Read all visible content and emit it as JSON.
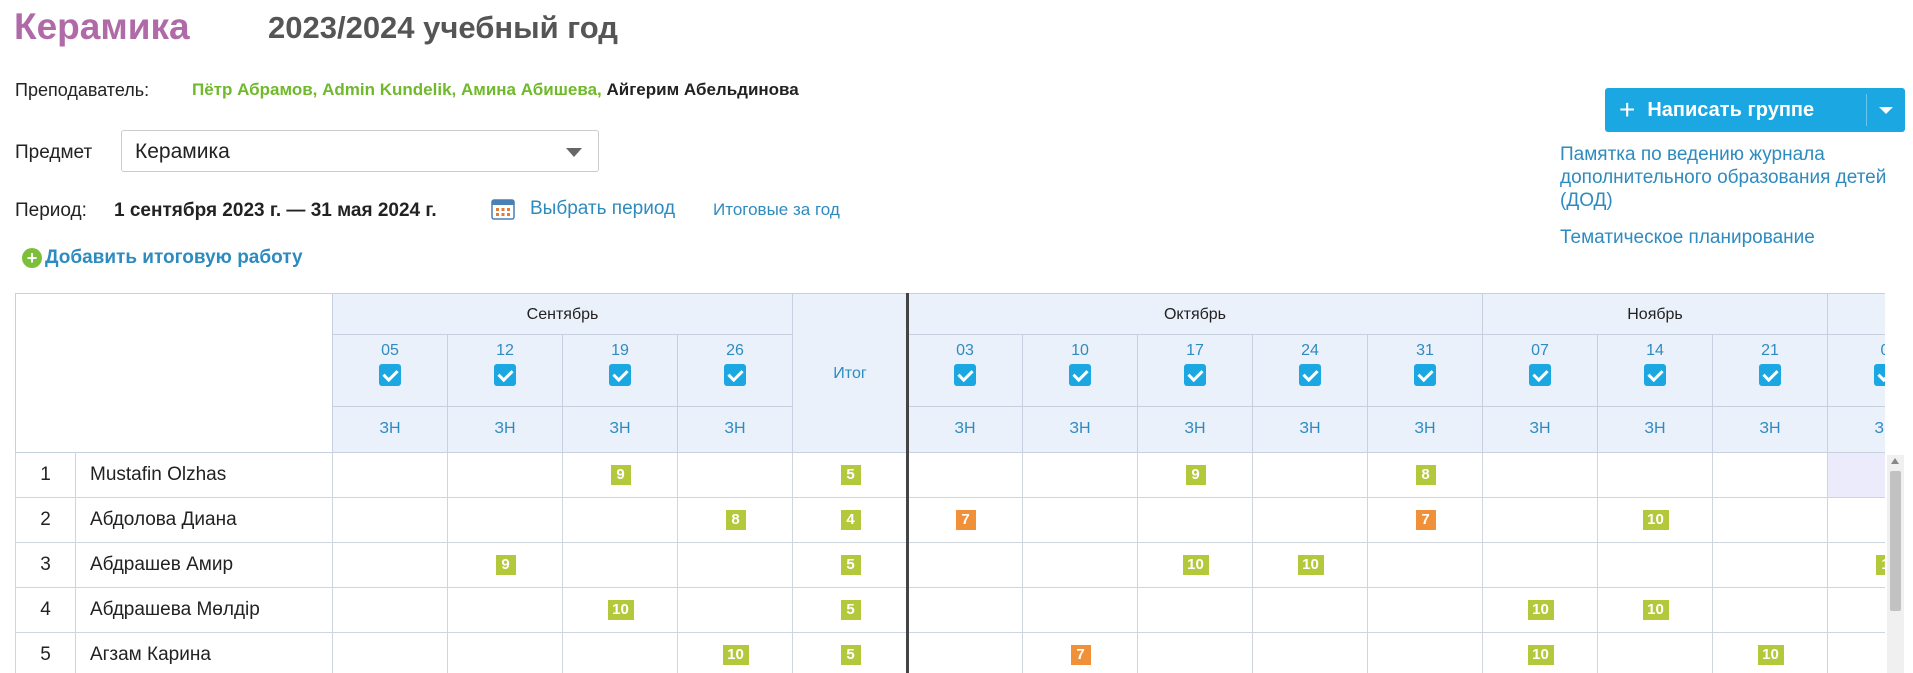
{
  "header": {
    "title": "Керамика",
    "year": "2023/2024 учебный год"
  },
  "teacher": {
    "label": "Преподаватель:",
    "names_green": "Пётр Абрамов, Admin Kundelik, Амина Абишева,",
    "names_dark": "Айгерим Абельдинова"
  },
  "subject": {
    "label": "Предмет",
    "value": "Керамика"
  },
  "period": {
    "label": "Период:",
    "value": "1 сентября 2023 г. — 31 мая 2024 г.",
    "choose_link": "Выбрать период",
    "year_totals_link": "Итоговые за год",
    "calendar_icon": "calendar-icon"
  },
  "add_final_work": "Добавить итоговую работу",
  "write_group_button": "Написать группе",
  "right_links": {
    "memo": "Памятка по ведению журнала дополнительного образования детей (ДОД)",
    "planning": "Тематическое планирование"
  },
  "journal": {
    "months": [
      "Сентябрь",
      "Октябрь",
      "Ноябрь"
    ],
    "total_label": "Итог",
    "sep_days": [
      "05",
      "12",
      "19",
      "26"
    ],
    "oct_days": [
      "03",
      "10",
      "17",
      "24",
      "31"
    ],
    "nov_days": [
      "07",
      "14",
      "21"
    ],
    "next_day_partial": "0",
    "lesson_type": "ЗН",
    "students": [
      {
        "n": "1",
        "name": "Mustafin Olzhas"
      },
      {
        "n": "2",
        "name": "Абдолова Диана"
      },
      {
        "n": "3",
        "name": "Абдрашев Амир"
      },
      {
        "n": "4",
        "name": "Абдрашева Мөлдір"
      },
      {
        "n": "5",
        "name": "Агзам Карина"
      }
    ],
    "grades": [
      {
        "row": 0,
        "col": 2,
        "v": "9",
        "color": "green"
      },
      {
        "row": 0,
        "col": 4,
        "v": "5",
        "color": "green"
      },
      {
        "row": 0,
        "col": 7,
        "v": "9",
        "color": "green"
      },
      {
        "row": 0,
        "col": 9,
        "v": "8",
        "color": "green"
      },
      {
        "row": 1,
        "col": 3,
        "v": "8",
        "color": "green"
      },
      {
        "row": 1,
        "col": 4,
        "v": "4",
        "color": "green"
      },
      {
        "row": 1,
        "col": 5,
        "v": "7",
        "color": "orange"
      },
      {
        "row": 1,
        "col": 9,
        "v": "7",
        "color": "orange"
      },
      {
        "row": 1,
        "col": 11,
        "v": "10",
        "color": "green"
      },
      {
        "row": 2,
        "col": 1,
        "v": "9",
        "color": "green"
      },
      {
        "row": 2,
        "col": 4,
        "v": "5",
        "color": "green"
      },
      {
        "row": 2,
        "col": 7,
        "v": "10",
        "color": "green"
      },
      {
        "row": 2,
        "col": 8,
        "v": "10",
        "color": "green"
      },
      {
        "row": 2,
        "col": 13,
        "v": "1",
        "color": "green"
      },
      {
        "row": 3,
        "col": 2,
        "v": "10",
        "color": "green"
      },
      {
        "row": 3,
        "col": 4,
        "v": "5",
        "color": "green"
      },
      {
        "row": 3,
        "col": 10,
        "v": "10",
        "color": "green"
      },
      {
        "row": 3,
        "col": 11,
        "v": "10",
        "color": "green"
      },
      {
        "row": 4,
        "col": 3,
        "v": "10",
        "color": "green"
      },
      {
        "row": 4,
        "col": 4,
        "v": "5",
        "color": "green"
      },
      {
        "row": 4,
        "col": 6,
        "v": "7",
        "color": "orange"
      },
      {
        "row": 4,
        "col": 10,
        "v": "10",
        "color": "green"
      },
      {
        "row": 4,
        "col": 12,
        "v": "10",
        "color": "green"
      }
    ],
    "colors": {
      "green": "#b4c83c",
      "orange": "#f0913a",
      "accent": "#1aa7e2"
    }
  }
}
